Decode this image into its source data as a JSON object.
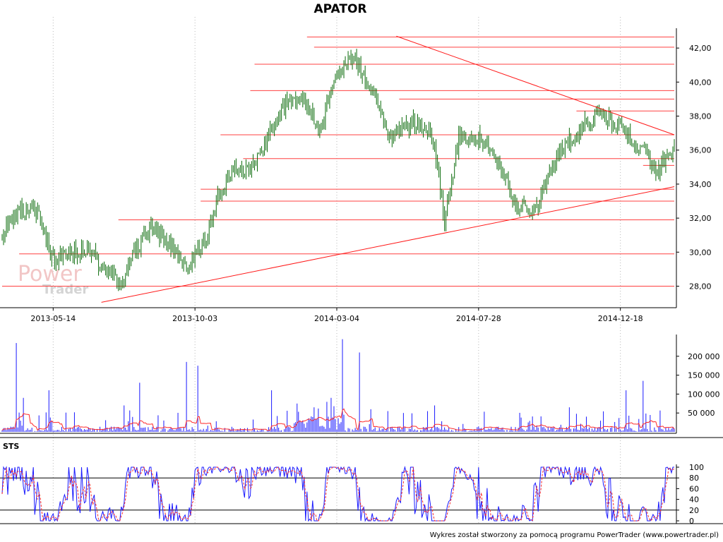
{
  "colors": {
    "candle": "#0a6b0a",
    "level_line": "#ff4040",
    "trend_line": "#ff1a1a",
    "volume_bar": "#1a1aff",
    "volume_ma": "#ff2a2a",
    "sts_k": "#1a1aff",
    "sts_d": "#ff2a2a",
    "grid": "#b8b8b8",
    "watermark_power": "#f2c6c6",
    "watermark_trader": "#d4d4d4"
  },
  "watermark": {
    "word1": "Power",
    "word2": "Trader"
  },
  "footer": "Wykres został stworzony za pomocą programu PowerTrader (www.powertrader.pl)",
  "chart_data": [
    {
      "type": "line",
      "title": "APATOR",
      "y_axis_side": "right",
      "ylim": [
        26.9,
        43.0
      ],
      "y_ticks": [
        28,
        30,
        32,
        34,
        36,
        38,
        40,
        42
      ],
      "y_tick_labels": [
        "28,00",
        "30,00",
        "32,00",
        "34,00",
        "36,00",
        "38,00",
        "40,00",
        "42,00"
      ],
      "x_tick_labels": [
        "2013-05-14",
        "2013-10-03",
        "2014-03-04",
        "2014-07-28",
        "2014-12-18"
      ],
      "x_tick_positions": [
        36,
        136,
        236,
        336,
        436
      ],
      "n_bars": 475,
      "grid": "dotted vertical lines at date ticks",
      "price_path": [
        [
          0,
          31.2
        ],
        [
          12,
          32.5
        ],
        [
          25,
          32.4
        ],
        [
          35,
          29.6
        ],
        [
          48,
          29.8
        ],
        [
          60,
          30.3
        ],
        [
          72,
          28.8
        ],
        [
          84,
          28.3
        ],
        [
          92,
          29.8
        ],
        [
          105,
          31.6
        ],
        [
          118,
          30.4
        ],
        [
          130,
          29.0
        ],
        [
          145,
          31.0
        ],
        [
          152,
          33.2
        ],
        [
          162,
          34.6
        ],
        [
          178,
          35.2
        ],
        [
          190,
          37.3
        ],
        [
          200,
          38.8
        ],
        [
          212,
          39.0
        ],
        [
          225,
          37.2
        ],
        [
          235,
          40.6
        ],
        [
          248,
          41.3
        ],
        [
          260,
          39.6
        ],
        [
          275,
          36.7
        ],
        [
          290,
          37.6
        ],
        [
          304,
          36.9
        ],
        [
          312,
          31.8
        ],
        [
          322,
          36.8
        ],
        [
          340,
          36.6
        ],
        [
          352,
          35.0
        ],
        [
          362,
          32.8
        ],
        [
          376,
          32.4
        ],
        [
          392,
          35.8
        ],
        [
          410,
          37.4
        ],
        [
          420,
          38.2
        ],
        [
          435,
          37.4
        ],
        [
          452,
          36.0
        ],
        [
          462,
          34.6
        ],
        [
          474,
          36.4
        ]
      ],
      "horizontal_levels": [
        {
          "value": 42.65,
          "from": 215,
          "to": 474
        },
        {
          "value": 42.05,
          "from": 220,
          "to": 474
        },
        {
          "value": 41.05,
          "from": 178,
          "to": 474
        },
        {
          "value": 39.5,
          "from": 175,
          "to": 474
        },
        {
          "value": 39.0,
          "from": 280,
          "to": 474
        },
        {
          "value": 38.3,
          "from": 405,
          "to": 474
        },
        {
          "value": 36.9,
          "from": 154,
          "to": 474
        },
        {
          "value": 35.5,
          "from": 170,
          "to": 474
        },
        {
          "value": 35.1,
          "from": 452,
          "to": 474
        },
        {
          "value": 33.7,
          "from": 140,
          "to": 474
        },
        {
          "value": 33.0,
          "from": 140,
          "to": 474
        },
        {
          "value": 31.9,
          "from": 82,
          "to": 474
        },
        {
          "value": 29.9,
          "from": 12,
          "to": 474
        },
        {
          "value": 28.0,
          "from": 0,
          "to": 474
        }
      ],
      "trend_lines": [
        {
          "x1": 70,
          "y1": 27.05,
          "x2": 474,
          "y2": 33.85
        },
        {
          "x1": 278,
          "y1": 42.7,
          "x2": 474,
          "y2": 36.9
        }
      ]
    },
    {
      "type": "bar",
      "series": "volume",
      "ylim": [
        0,
        250000
      ],
      "y_ticks": [
        50000,
        100000,
        150000,
        200000
      ],
      "y_tick_labels": [
        "50 000",
        "100 000",
        "150 000",
        "200 000"
      ],
      "spikes": [
        [
          10,
          235000
        ],
        [
          15,
          90000
        ],
        [
          33,
          110000
        ],
        [
          86,
          70000
        ],
        [
          97,
          130000
        ],
        [
          130,
          185000
        ],
        [
          138,
          175000
        ],
        [
          190,
          110000
        ],
        [
          208,
          75000
        ],
        [
          220,
          65000
        ],
        [
          232,
          90000
        ],
        [
          240,
          245000
        ],
        [
          252,
          210000
        ],
        [
          260,
          60000
        ],
        [
          305,
          70000
        ],
        [
          400,
          65000
        ],
        [
          440,
          110000
        ],
        [
          452,
          135000
        ]
      ]
    },
    {
      "type": "line",
      "series_label": "STS",
      "ylim": [
        0,
        100
      ],
      "y_ticks": [
        0,
        20,
        40,
        60,
        80,
        100
      ],
      "y_tick_labels": [
        "0",
        "20",
        "40",
        "60",
        "80",
        "100"
      ],
      "reference_lines": [
        20,
        80
      ]
    }
  ]
}
